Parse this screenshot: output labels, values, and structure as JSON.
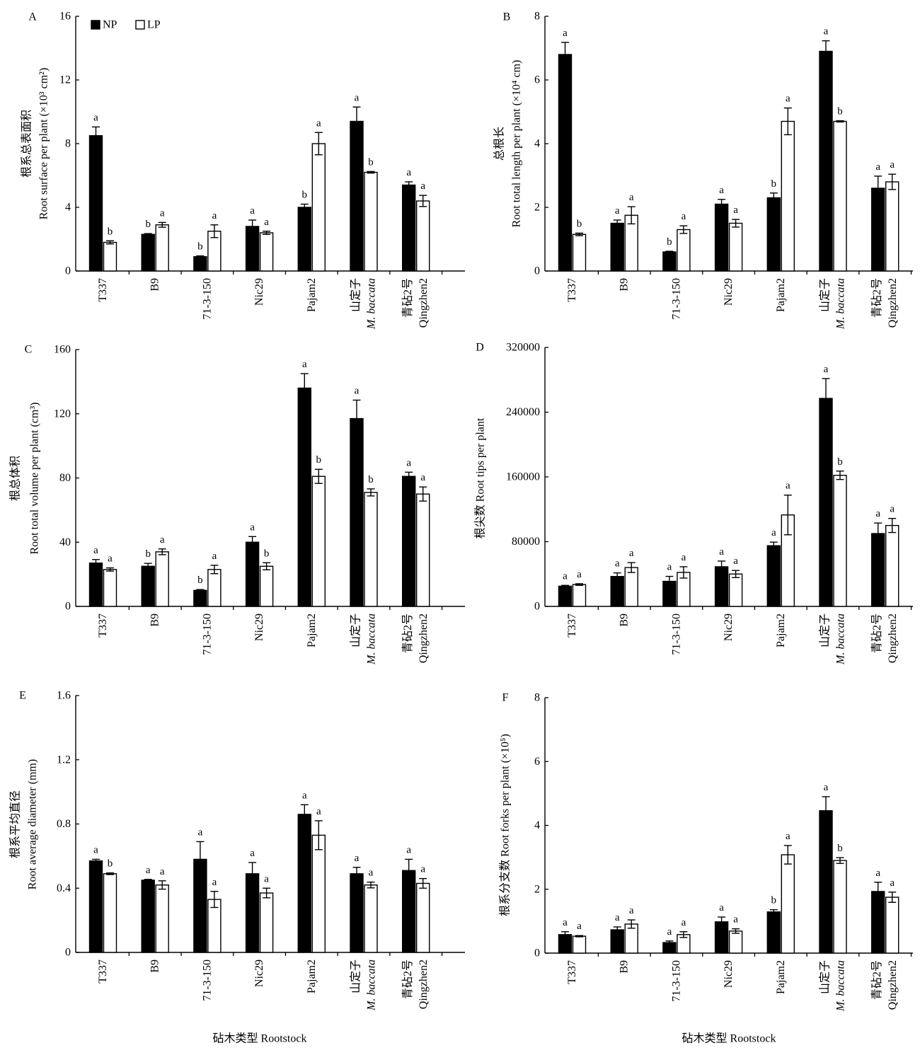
{
  "chart_data": [
    {
      "panel": "A",
      "type": "bar",
      "ylabel": [
        "根系总表面积",
        "Root surface per plant (×10³ cm²)"
      ],
      "xlabel": "",
      "ylim": [
        0,
        16
      ],
      "yticks": [
        0,
        4,
        8,
        12,
        16
      ],
      "categories": [
        [
          "T337"
        ],
        [
          "B9"
        ],
        [
          "71-3-150"
        ],
        [
          "Nic29"
        ],
        [
          "Pajam2"
        ],
        [
          "山定子",
          "M. baccata"
        ],
        [
          "青砧2号",
          "Qingzhen2"
        ]
      ],
      "legend": "top-left",
      "series": [
        {
          "name": "NP",
          "color": "#000000",
          "values": [
            8.5,
            2.3,
            0.9,
            2.8,
            4.0,
            9.4,
            5.4
          ],
          "errors": [
            0.55,
            0.05,
            0.05,
            0.4,
            0.2,
            0.9,
            0.2
          ],
          "letters": [
            "a",
            "b",
            "b",
            "a",
            "b",
            "a",
            "a"
          ]
        },
        {
          "name": "LP",
          "color": "#ffffff",
          "values": [
            1.8,
            2.9,
            2.5,
            2.4,
            8.0,
            6.2,
            4.4
          ],
          "errors": [
            0.1,
            0.15,
            0.4,
            0.1,
            0.7,
            0.05,
            0.35
          ],
          "letters": [
            "b",
            "a",
            "a",
            "a",
            "a",
            "b",
            "a"
          ]
        }
      ]
    },
    {
      "panel": "B",
      "type": "bar",
      "ylabel": [
        "总根长",
        "Root total length per plant (×10⁴ cm)"
      ],
      "xlabel": "",
      "ylim": [
        0,
        8
      ],
      "yticks": [
        0,
        2,
        4,
        6,
        8
      ],
      "categories": [
        [
          "T337"
        ],
        [
          "B9"
        ],
        [
          "71-3-150"
        ],
        [
          "Nic29"
        ],
        [
          "Pajam2"
        ],
        [
          "山定子",
          "M. baccata"
        ],
        [
          "青砧2号",
          "Qingzhen2"
        ]
      ],
      "series": [
        {
          "color": "#000000",
          "values": [
            6.8,
            1.5,
            0.6,
            2.1,
            2.3,
            6.9,
            2.6
          ],
          "errors": [
            0.38,
            0.1,
            0.02,
            0.15,
            0.15,
            0.33,
            0.38
          ],
          "letters": [
            "a",
            "a",
            "b",
            "a",
            "b",
            "a",
            "a"
          ]
        },
        {
          "color": "#ffffff",
          "values": [
            1.15,
            1.75,
            1.3,
            1.5,
            4.7,
            4.7,
            2.8
          ],
          "errors": [
            0.04,
            0.27,
            0.12,
            0.12,
            0.42,
            0.02,
            0.24
          ],
          "letters": [
            "b",
            "a",
            "a",
            "a",
            "a",
            "b",
            "a"
          ]
        }
      ]
    },
    {
      "panel": "C",
      "type": "bar",
      "ylabel": [
        "根总体积",
        "Root total volume per plant (cm³)"
      ],
      "xlabel": "",
      "ylim": [
        0,
        160
      ],
      "yticks": [
        0,
        40,
        80,
        120,
        160
      ],
      "categories": [
        [
          "T337"
        ],
        [
          "B9"
        ],
        [
          "71-3-150"
        ],
        [
          "Nic29"
        ],
        [
          "Pajam2"
        ],
        [
          "山定子",
          "M. baccata"
        ],
        [
          "青砧2号",
          "Qingzhen2"
        ]
      ],
      "series": [
        {
          "color": "#000000",
          "values": [
            27,
            25,
            10,
            40,
            136,
            117,
            81
          ],
          "errors": [
            2.2,
            1.8,
            0.5,
            3.5,
            9,
            11.5,
            2.6
          ],
          "letters": [
            "a",
            "b",
            "b",
            "a",
            "a",
            "a",
            "a"
          ]
        },
        {
          "color": "#ffffff",
          "values": [
            23,
            34,
            23,
            25,
            81,
            71,
            70
          ],
          "errors": [
            1,
            1.8,
            2.6,
            2.2,
            4.4,
            2.2,
            4.4
          ],
          "letters": [
            "a",
            "a",
            "a",
            "b",
            "b",
            "b",
            "a"
          ]
        }
      ]
    },
    {
      "panel": "D",
      "type": "bar",
      "ylabel": [
        "根尖数 Root tips per plant"
      ],
      "xlabel": "",
      "ylim": [
        0,
        320000
      ],
      "yticks": [
        0,
        80000,
        160000,
        240000,
        320000
      ],
      "categories": [
        [
          "T337"
        ],
        [
          "B9"
        ],
        [
          "71-3-150"
        ],
        [
          "Nic29"
        ],
        [
          "Pajam2"
        ],
        [
          "山定子",
          "M. baccata"
        ],
        [
          "青砧2号",
          "Qingzhen2"
        ]
      ],
      "series": [
        {
          "color": "#000000",
          "values": [
            25000,
            37000,
            31000,
            49000,
            75000,
            257000,
            90000
          ],
          "errors": [
            1000,
            4400,
            6100,
            7000,
            4400,
            24500,
            13000
          ],
          "letters": [
            "a",
            "a",
            "a",
            "a",
            "a",
            "a",
            "a"
          ]
        },
        {
          "color": "#ffffff",
          "values": [
            27000,
            48000,
            42000,
            40000,
            113000,
            162000,
            100000
          ],
          "errors": [
            1000,
            6100,
            7000,
            4400,
            24500,
            5200,
            8700
          ],
          "letters": [
            "a",
            "a",
            "a",
            "a",
            "a",
            "b",
            "a"
          ]
        }
      ]
    },
    {
      "panel": "E",
      "type": "bar",
      "ylabel": [
        "根系平均直径",
        "Root average diameter (mm)"
      ],
      "xlabel": "砧木类型 Rootstock",
      "ylim": [
        0,
        1.6
      ],
      "yticks": [
        0,
        0.4,
        0.8,
        1.2,
        1.6
      ],
      "categories": [
        [
          "T337"
        ],
        [
          "B9"
        ],
        [
          "71-3-150"
        ],
        [
          "Nic29"
        ],
        [
          "Pajam2"
        ],
        [
          "山定子",
          "M. baccata"
        ],
        [
          "青砧2号",
          "Qingzhen2"
        ]
      ],
      "series": [
        {
          "color": "#000000",
          "values": [
            0.57,
            0.45,
            0.58,
            0.49,
            0.86,
            0.49,
            0.51
          ],
          "errors": [
            0.01,
            0.005,
            0.11,
            0.07,
            0.06,
            0.04,
            0.07
          ],
          "letters": [
            "a",
            "a",
            "a",
            "a",
            "a",
            "a",
            "a"
          ]
        },
        {
          "color": "#ffffff",
          "values": [
            0.49,
            0.42,
            0.33,
            0.37,
            0.73,
            0.42,
            0.43
          ],
          "errors": [
            0.005,
            0.026,
            0.05,
            0.03,
            0.09,
            0.018,
            0.03
          ],
          "letters": [
            "b",
            "a",
            "a",
            "a",
            "a",
            "a",
            "a"
          ]
        }
      ]
    },
    {
      "panel": "F",
      "type": "bar",
      "ylabel": [
        "根系分支数 Root forks per plant (×10⁵)"
      ],
      "xlabel": "砧木类型 Rootstock",
      "ylim": [
        0,
        8
      ],
      "yticks": [
        0,
        2,
        4,
        6,
        8
      ],
      "categories": [
        [
          "T337"
        ],
        [
          "B9"
        ],
        [
          "71-3-150"
        ],
        [
          "Nic29"
        ],
        [
          "Pajam2"
        ],
        [
          "山定子",
          "M. baccata"
        ],
        [
          "青砧2号",
          "Qingzhen2"
        ]
      ],
      "series": [
        {
          "color": "#000000",
          "values": [
            0.58,
            0.73,
            0.33,
            0.98,
            1.29,
            4.46,
            1.93
          ],
          "errors": [
            0.09,
            0.09,
            0.05,
            0.15,
            0.07,
            0.44,
            0.29
          ],
          "letters": [
            "a",
            "a",
            "a",
            "a",
            "b",
            "a",
            "a"
          ]
        },
        {
          "color": "#ffffff",
          "values": [
            0.53,
            0.91,
            0.58,
            0.69,
            3.08,
            2.9,
            1.75
          ],
          "errors": [
            0.02,
            0.13,
            0.09,
            0.07,
            0.29,
            0.09,
            0.16
          ],
          "letters": [
            "a",
            "a",
            "a",
            "a",
            "a",
            "b",
            "a"
          ]
        }
      ]
    }
  ]
}
